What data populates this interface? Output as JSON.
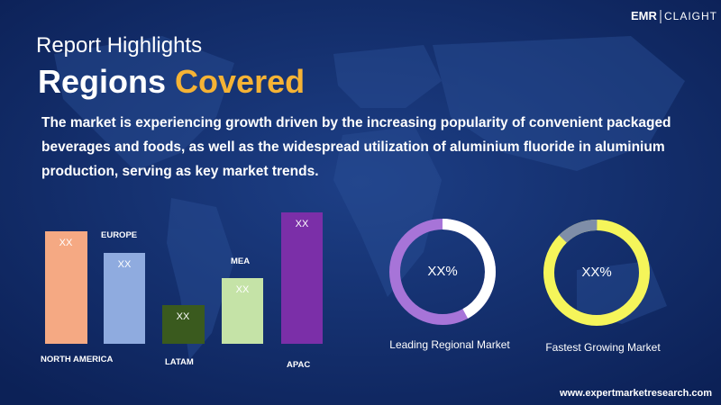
{
  "brand": {
    "left": "EMR",
    "right": "CLAIGHT"
  },
  "header": {
    "kicker": "Report Highlights",
    "title_main": "Regions",
    "title_accent": "Covered"
  },
  "description": [
    "The market is experiencing growth driven by the increasing popularity of convenient packaged",
    "beverages and foods, as well as the widespread utilization of aluminium fluoride in aluminium",
    "production, serving as key market trends."
  ],
  "bars": [
    {
      "region": "NORTH AMERICA",
      "label": "XX"
    },
    {
      "region": "EUROPE",
      "label": "XX"
    },
    {
      "region": "LATAM",
      "label": "XX"
    },
    {
      "region": "MEA",
      "label": "XX"
    },
    {
      "region": "APAC",
      "label": "XX"
    }
  ],
  "donuts": [
    {
      "center": "XX%",
      "caption": "Leading Regional Market"
    },
    {
      "center": "XX%",
      "caption": "Fastest Growing Market"
    }
  ],
  "footer": {
    "url": "www.expertmarketresearch.com"
  }
}
